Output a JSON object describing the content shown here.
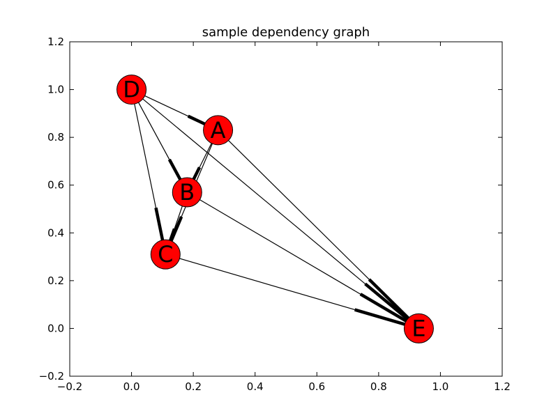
{
  "chart_data": {
    "type": "scatter",
    "title": "sample dependency graph",
    "xlabel": "",
    "ylabel": "",
    "xlim": [
      -0.2,
      1.2
    ],
    "ylim": [
      -0.2,
      1.2
    ],
    "xticks": [
      -0.2,
      0.0,
      0.2,
      0.4,
      0.6,
      0.8,
      1.0,
      1.2
    ],
    "yticks": [
      -0.2,
      0.0,
      0.2,
      0.4,
      0.6,
      0.8,
      1.0,
      1.2
    ],
    "xtick_labels": [
      "−0.2",
      "0.0",
      "0.2",
      "0.4",
      "0.6",
      "0.8",
      "1.0",
      "1.2"
    ],
    "ytick_labels": [
      "−0.2",
      "0.0",
      "0.2",
      "0.4",
      "0.6",
      "0.8",
      "1.0",
      "1.2"
    ],
    "node_color": "#ff0000",
    "edge_color": "#000000",
    "nodes": [
      {
        "id": "A",
        "label": "A",
        "x": 0.28,
        "y": 0.83
      },
      {
        "id": "B",
        "label": "B",
        "x": 0.18,
        "y": 0.57
      },
      {
        "id": "C",
        "label": "C",
        "x": 0.11,
        "y": 0.31
      },
      {
        "id": "D",
        "label": "D",
        "x": 0.0,
        "y": 1.0
      },
      {
        "id": "E",
        "label": "E",
        "x": 0.93,
        "y": 0.0
      }
    ],
    "edges": [
      {
        "source": "D",
        "target": "A"
      },
      {
        "source": "D",
        "target": "B"
      },
      {
        "source": "D",
        "target": "C"
      },
      {
        "source": "D",
        "target": "E"
      },
      {
        "source": "A",
        "target": "B"
      },
      {
        "source": "A",
        "target": "C"
      },
      {
        "source": "A",
        "target": "E"
      },
      {
        "source": "B",
        "target": "C"
      },
      {
        "source": "B",
        "target": "E"
      },
      {
        "source": "C",
        "target": "E"
      }
    ]
  }
}
